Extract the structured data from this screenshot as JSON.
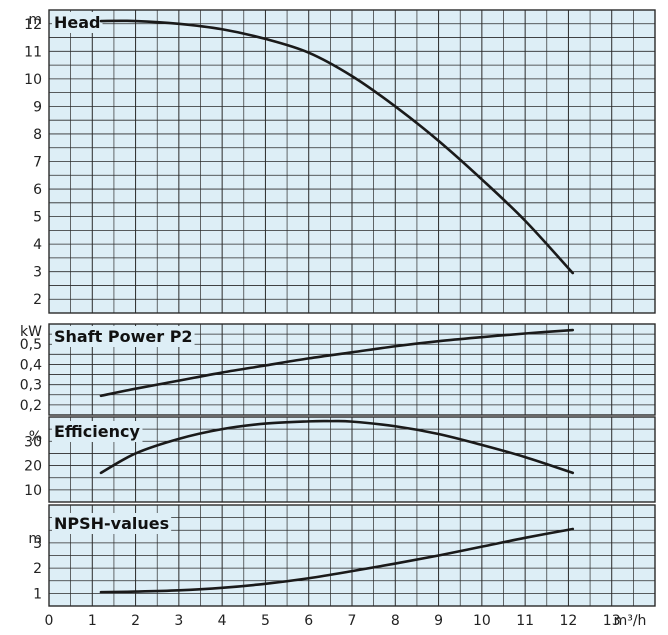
{
  "colors": {
    "background": "#ddeef6",
    "grid": "#2a2a2a",
    "curve": "#1a1a1a",
    "text": "#222222"
  },
  "chart_data": {
    "type": "line",
    "x": {
      "unit": "m³/h",
      "ticks": [
        "0",
        "1",
        "2",
        "3",
        "4",
        "5",
        "6",
        "7",
        "8",
        "9",
        "10",
        "11",
        "12",
        "13"
      ],
      "range": [
        0,
        14
      ],
      "grid": true
    },
    "panels": [
      {
        "id": "head",
        "title": "Head",
        "unit": "m",
        "ylim": [
          1.5,
          12.5
        ],
        "yticks": [
          "2",
          "3",
          "4",
          "5",
          "6",
          "7",
          "8",
          "9",
          "10",
          "11",
          "12"
        ],
        "series": [
          {
            "x": [
              1.2,
              2,
              3,
              4,
              5,
              6,
              7,
              8,
              9,
              10,
              11,
              12.1
            ],
            "y": [
              12.1,
              12.1,
              12.0,
              11.8,
              11.45,
              10.95,
              10.1,
              9.0,
              7.75,
              6.35,
              4.85,
              2.95
            ]
          }
        ]
      },
      {
        "id": "shaft-power",
        "title": "Shaft Power P2",
        "unit": "kW",
        "ylim": [
          0.15,
          0.6
        ],
        "yticks": [
          "0,2",
          "0,3",
          "0,4",
          "0,5"
        ],
        "series": [
          {
            "x": [
              1.2,
              2,
              3,
              4,
              5,
              6,
              7,
              8,
              9,
              10,
              11,
              12.1
            ],
            "y": [
              0.245,
              0.28,
              0.32,
              0.36,
              0.395,
              0.43,
              0.46,
              0.49,
              0.515,
              0.535,
              0.553,
              0.57
            ]
          }
        ]
      },
      {
        "id": "efficiency",
        "title": "Efficiency",
        "unit": "%",
        "ylim": [
          5,
          40
        ],
        "yticks": [
          "10",
          "20",
          "30"
        ],
        "series": [
          {
            "x": [
              1.2,
              2,
              3,
              4,
              5,
              6,
              6.5,
              7,
              8,
              9,
              10,
              11,
              12.1
            ],
            "y": [
              17,
              25,
              31,
              35,
              37.3,
              38.2,
              38.3,
              38.1,
              36.2,
              33,
              28.5,
              23.5,
              17
            ]
          }
        ]
      },
      {
        "id": "npsh",
        "title": "NPSH-values",
        "unit": "m",
        "ylim": [
          0.5,
          4.5
        ],
        "yticks": [
          "1",
          "2",
          "3"
        ],
        "series": [
          {
            "x": [
              1.2,
              2,
              3,
              4,
              5,
              6,
              7,
              8,
              9,
              10,
              11,
              12.1
            ],
            "y": [
              1.05,
              1.07,
              1.12,
              1.22,
              1.38,
              1.6,
              1.88,
              2.18,
              2.5,
              2.85,
              3.2,
              3.55
            ]
          }
        ]
      }
    ]
  }
}
